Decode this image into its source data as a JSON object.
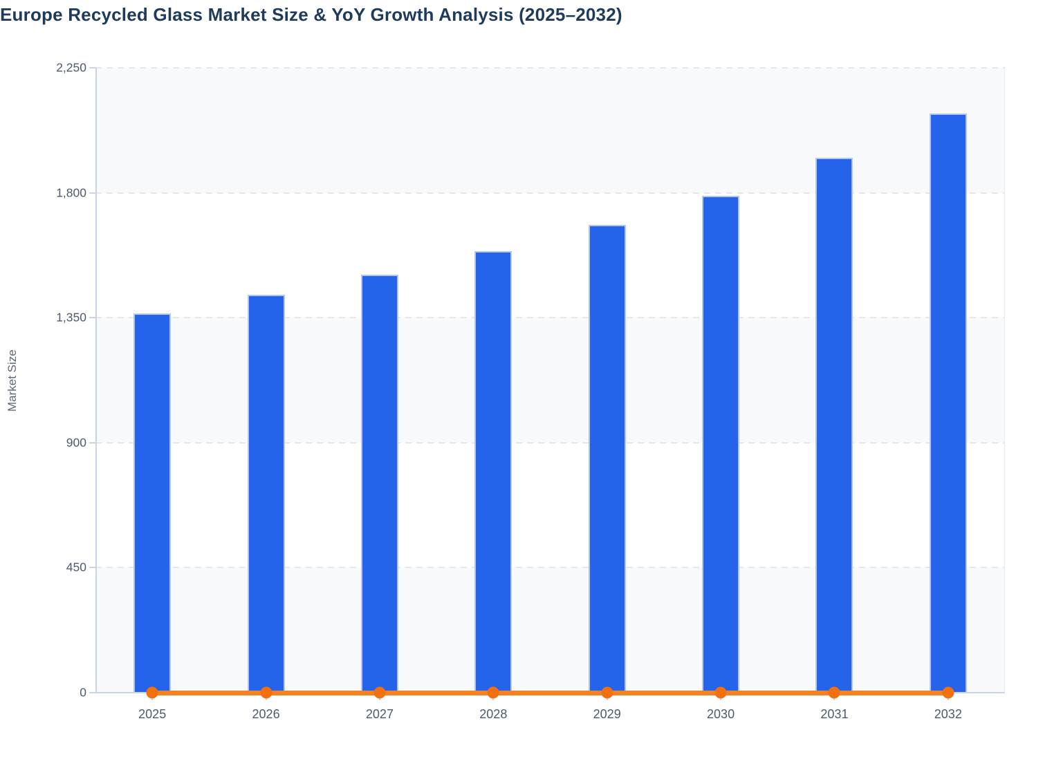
{
  "header": {
    "title": "Europe Recycled Glass Market Size & YoY Growth Analysis (2025–2032)"
  },
  "chart_data": {
    "type": "bar",
    "title": "Europe Recycled Glass Market Size & YoY Growth Analysis (2025–2032)",
    "categories": [
      "2025",
      "2026",
      "2027",
      "2028",
      "2029",
      "2030",
      "2031",
      "2032"
    ],
    "series": [
      {
        "name": "Market Size",
        "type": "bar",
        "values": [
          1365,
          1433,
          1505,
          1590,
          1685,
          1790,
          1925,
          2085
        ]
      },
      {
        "name": "YoY Growth",
        "type": "line",
        "values_on_left_axis": [
          0,
          0,
          0,
          0,
          0,
          0,
          0,
          0
        ],
        "note": "YoY growth line is plotted against the Market Size axis and renders flat at approximately 0 with a marker at each year; exact percentage values are not labeled in the image."
      }
    ],
    "xlabel": "",
    "ylabel": "Market Size",
    "ylim": [
      0,
      2250
    ],
    "yticks": [
      0,
      450,
      900,
      1350,
      1800,
      2250
    ],
    "ytick_labels": [
      "0",
      "450",
      "900",
      "1,350",
      "1,800",
      "2,250"
    ],
    "grid": "horizontal dashed lines at each y tick",
    "plot_bands": "alternating horizontal stripes between y ticks, light gray and white, starting light gray at top",
    "legend_position": "none"
  },
  "colors": {
    "title": "#1e3a5c",
    "bar_fill": "#2563eb",
    "bar_border": "#b3c5f4",
    "yoy_line": "#f5821f",
    "yoy_marker": "#f4700e",
    "axis_line": "#c9d3e6",
    "gridline": "#e4e7ec",
    "band_shade": "#f8f9fb",
    "band_plain": "#ffffff",
    "tick_label": "#4d5a6c",
    "axis_title": "#5c6673",
    "background": "#ffffff"
  }
}
